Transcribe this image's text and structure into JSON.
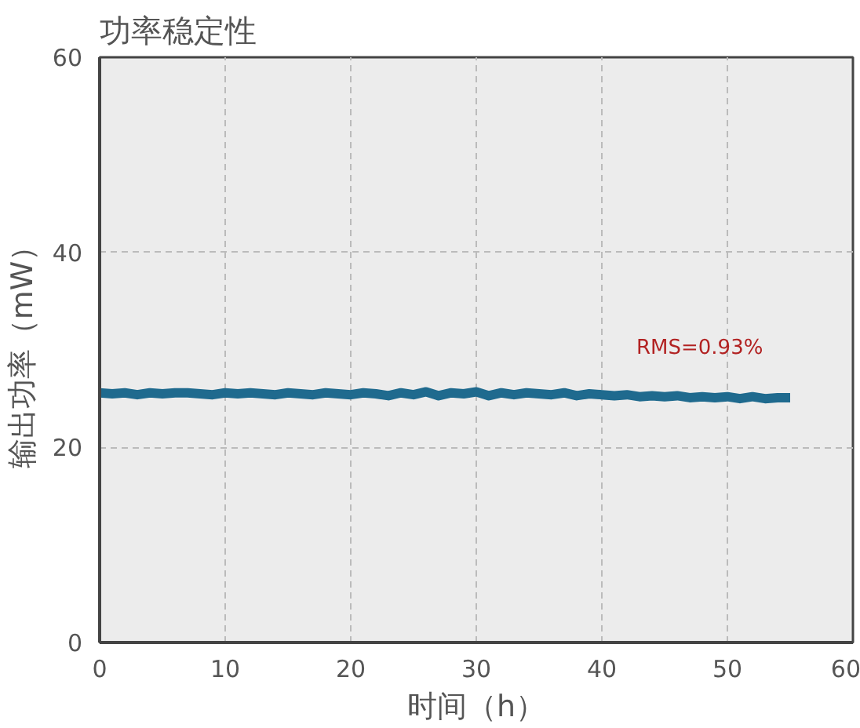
{
  "chart_data": {
    "type": "line",
    "title": "功率稳定性",
    "xlabel": "时间（h）",
    "ylabel": "输出功率（mW）",
    "x": [
      0,
      1,
      2,
      3,
      4,
      5,
      6,
      7,
      8,
      9,
      10,
      11,
      12,
      13,
      14,
      15,
      16,
      17,
      18,
      19,
      20,
      21,
      22,
      23,
      24,
      25,
      26,
      27,
      28,
      29,
      30,
      31,
      32,
      33,
      34,
      35,
      36,
      37,
      38,
      39,
      40,
      41,
      42,
      43,
      44,
      45,
      46,
      47,
      48,
      49,
      50,
      51,
      52,
      53,
      54,
      55
    ],
    "series": [
      {
        "color": "#1f6a8e",
        "values": [
          25.6,
          25.5,
          25.6,
          25.4,
          25.6,
          25.5,
          25.6,
          25.6,
          25.5,
          25.4,
          25.6,
          25.5,
          25.6,
          25.5,
          25.4,
          25.6,
          25.5,
          25.4,
          25.6,
          25.5,
          25.4,
          25.6,
          25.5,
          25.3,
          25.6,
          25.4,
          25.7,
          25.3,
          25.6,
          25.5,
          25.7,
          25.3,
          25.6,
          25.4,
          25.6,
          25.5,
          25.4,
          25.6,
          25.3,
          25.5,
          25.4,
          25.3,
          25.4,
          25.2,
          25.3,
          25.2,
          25.3,
          25.1,
          25.2,
          25.1,
          25.2,
          25.0,
          25.2,
          25.0,
          25.1,
          25.1
        ]
      }
    ],
    "xlim": [
      0,
      60
    ],
    "ylim": [
      0,
      60
    ],
    "xticks": [
      0,
      10,
      20,
      30,
      40,
      50,
      60
    ],
    "yticks": [
      0,
      20,
      40,
      60
    ],
    "grid": true,
    "line_style": "solid",
    "annotations": [
      "RMS=0.93%"
    ]
  }
}
